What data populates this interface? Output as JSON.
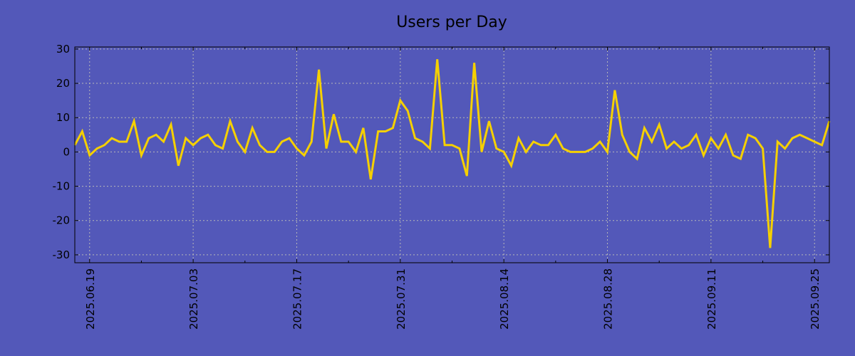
{
  "chart_data": {
    "type": "line",
    "title": "Users per Day",
    "xlabel": "",
    "ylabel": "",
    "start_date": "2025-06-17",
    "x_tick_labels": [
      "2025.06.19",
      "2025.07.03",
      "2025.07.17",
      "2025.07.31",
      "2025.08.14",
      "2025.08.28",
      "2025.09.11",
      "2025.09.25"
    ],
    "y_tick_labels": [
      "30",
      "20",
      "10",
      "0",
      "-10",
      "-20",
      "-30"
    ],
    "y_ticks": [
      30,
      20,
      10,
      0,
      -10,
      -20,
      -30
    ],
    "ylim": [
      -32.3,
      30.6
    ],
    "grid": true,
    "series": [
      {
        "name": "Users per Day",
        "color": "#f5d000",
        "values": [
          2,
          6,
          -1,
          1,
          2,
          4,
          3,
          3,
          9,
          -1,
          4,
          5,
          3,
          8,
          -4,
          4,
          2,
          4,
          5,
          2,
          1,
          9,
          3,
          0,
          7,
          2,
          0,
          0,
          3,
          4,
          1,
          -1,
          3,
          24,
          1,
          11,
          3,
          3,
          0,
          7,
          -8,
          6,
          6,
          7,
          15,
          12,
          4,
          3,
          1,
          27,
          2,
          2,
          1,
          -7,
          26,
          0,
          9,
          1,
          0,
          -4,
          4,
          0,
          3,
          2,
          2,
          5,
          1,
          0,
          0,
          0,
          1,
          3,
          0,
          18,
          5,
          0,
          -2,
          7,
          3,
          8,
          1,
          3,
          1,
          2,
          5,
          -1,
          4,
          1,
          5,
          -1,
          -2,
          5,
          4,
          1,
          -28,
          3,
          1,
          4,
          5,
          4,
          3,
          2,
          9
        ]
      }
    ]
  }
}
